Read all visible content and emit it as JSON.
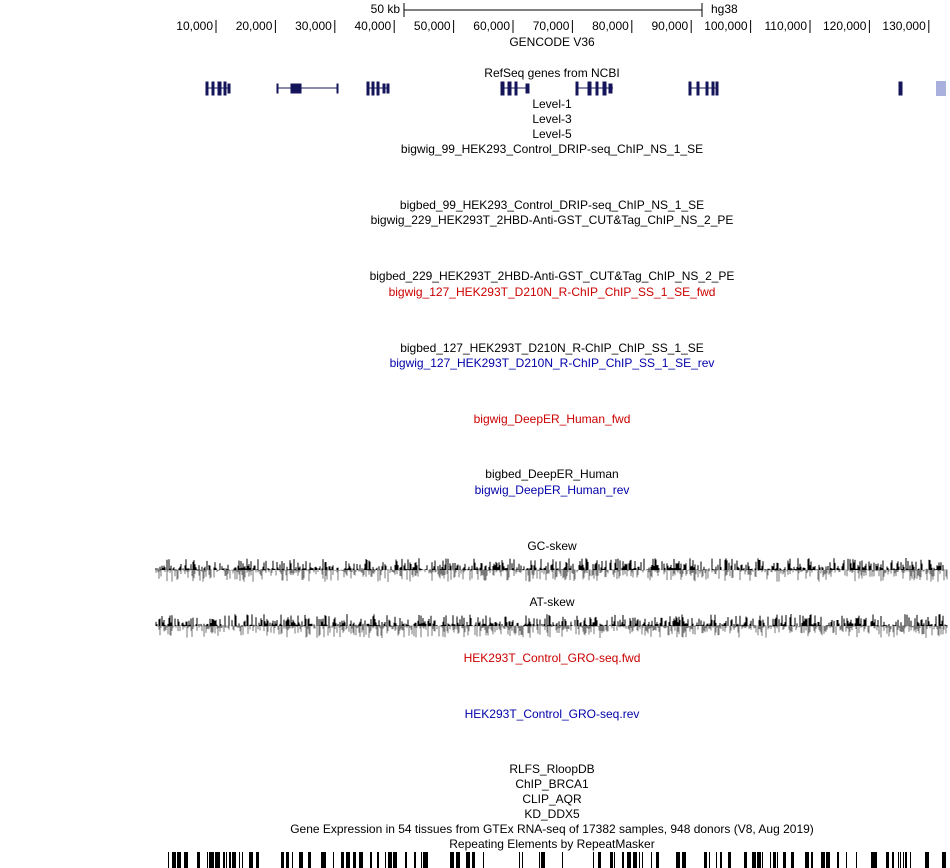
{
  "scale_bar": {
    "label": "50 kb",
    "assembly": "hg38"
  },
  "ruler": {
    "ticks": [
      "10,000",
      "20,000",
      "30,000",
      "40,000",
      "50,000",
      "60,000",
      "70,000",
      "80,000",
      "90,000",
      "100,000",
      "110,000",
      "120,000",
      "130,000"
    ]
  },
  "tracks": [
    {
      "label": "GENCODE V36",
      "color": "#000000"
    },
    {
      "label": "RefSeq genes from NCBI",
      "color": "#000000"
    },
    {
      "label": "Level-1",
      "color": "#000000"
    },
    {
      "label": "Level-3",
      "color": "#000000"
    },
    {
      "label": "Level-5",
      "color": "#000000"
    },
    {
      "label": "bigwig_99_HEK293_Control_DRIP-seq_ChIP_NS_1_SE",
      "color": "#000000"
    },
    {
      "label": "bigbed_99_HEK293_Control_DRIP-seq_ChIP_NS_1_SE",
      "color": "#000000"
    },
    {
      "label": "bigwig_229_HEK293T_2HBD-Anti-GST_CUT&Tag_ChIP_NS_2_PE",
      "color": "#000000"
    },
    {
      "label": "bigbed_229_HEK293T_2HBD-Anti-GST_CUT&Tag_ChIP_NS_2_PE",
      "color": "#000000"
    },
    {
      "label": "bigwig_127_HEK293T_D210N_R-ChIP_ChIP_SS_1_SE_fwd",
      "color": "#cc0000"
    },
    {
      "label": "bigbed_127_HEK293T_D210N_R-ChIP_ChIP_SS_1_SE",
      "color": "#000000"
    },
    {
      "label": "bigwig_127_HEK293T_D210N_R-ChIP_ChIP_SS_1_SE_rev",
      "color": "#0000aa"
    },
    {
      "label": "bigwig_DeepER_Human_fwd",
      "color": "#cc0000"
    },
    {
      "label": "bigbed_DeepER_Human",
      "color": "#000000"
    },
    {
      "label": "bigwig_DeepER_Human_rev",
      "color": "#0000aa"
    },
    {
      "label": "GC-skew",
      "color": "#000000"
    },
    {
      "label": "AT-skew",
      "color": "#000000"
    },
    {
      "label": "HEK293T_Control_GRO-seq.fwd",
      "color": "#cc0000"
    },
    {
      "label": "HEK293T_Control_GRO-seq.rev",
      "color": "#0000aa"
    },
    {
      "label": "RLFS_RloopDB",
      "color": "#000000"
    },
    {
      "label": "ChIP_BRCA1",
      "color": "#000000"
    },
    {
      "label": "CLIP_AQR",
      "color": "#000000"
    },
    {
      "label": "KD_DDX5",
      "color": "#000000"
    },
    {
      "label": "Gene Expression in 54 tissues from GTEx RNA-seq of 17382 samples, 948 donors (V8, Aug 2019)",
      "color": "#000000"
    },
    {
      "label": "Repeating Elements by RepeatMasker",
      "color": "#000000"
    }
  ]
}
